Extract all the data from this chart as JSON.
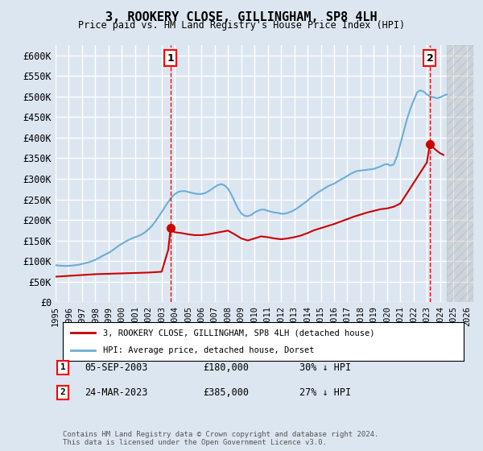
{
  "title": "3, ROOKERY CLOSE, GILLINGHAM, SP8 4LH",
  "subtitle": "Price paid vs. HM Land Registry's House Price Index (HPI)",
  "xlabel": "",
  "ylabel": "",
  "ylim": [
    0,
    625000
  ],
  "yticks": [
    0,
    50000,
    100000,
    150000,
    200000,
    250000,
    300000,
    350000,
    400000,
    450000,
    500000,
    550000,
    600000
  ],
  "ytick_labels": [
    "£0",
    "£50K",
    "£100K",
    "£150K",
    "£200K",
    "£250K",
    "£300K",
    "£350K",
    "£400K",
    "£450K",
    "£500K",
    "£550K",
    "£600K"
  ],
  "xlim_start": 1995.0,
  "xlim_end": 2026.5,
  "xtick_years": [
    1995,
    1996,
    1997,
    1998,
    1999,
    2000,
    2001,
    2002,
    2003,
    2004,
    2005,
    2006,
    2007,
    2008,
    2009,
    2010,
    2011,
    2012,
    2013,
    2014,
    2015,
    2016,
    2017,
    2018,
    2019,
    2020,
    2021,
    2022,
    2023,
    2024,
    2025,
    2026
  ],
  "background_color": "#dce6f1",
  "plot_bg_color": "#dce6f1",
  "hatch_color": "#c0c0c0",
  "grid_color": "#ffffff",
  "hpi_color": "#6baed6",
  "price_color": "#cc0000",
  "marker1_date": 2003.67,
  "marker1_price": 180000,
  "marker1_label": "1",
  "marker2_date": 2023.22,
  "marker2_price": 385000,
  "marker2_label": "2",
  "legend_line1": "3, ROOKERY CLOSE, GILLINGHAM, SP8 4LH (detached house)",
  "legend_line2": "HPI: Average price, detached house, Dorset",
  "footnote_row1": [
    {
      "num": "1",
      "date": "05-SEP-2003",
      "price": "£180,000",
      "pct": "30% ↓ HPI"
    },
    {
      "num": "2",
      "date": "24-MAR-2023",
      "price": "£385,000",
      "pct": "27% ↓ HPI"
    }
  ],
  "copyright": "Contains HM Land Registry data © Crown copyright and database right 2024.\nThis data is licensed under the Open Government Licence v3.0.",
  "hpi_x": [
    1995.0,
    1995.25,
    1995.5,
    1995.75,
    1996.0,
    1996.25,
    1996.5,
    1996.75,
    1997.0,
    1997.25,
    1997.5,
    1997.75,
    1998.0,
    1998.25,
    1998.5,
    1998.75,
    1999.0,
    1999.25,
    1999.5,
    1999.75,
    2000.0,
    2000.25,
    2000.5,
    2000.75,
    2001.0,
    2001.25,
    2001.5,
    2001.75,
    2002.0,
    2002.25,
    2002.5,
    2002.75,
    2003.0,
    2003.25,
    2003.5,
    2003.75,
    2004.0,
    2004.25,
    2004.5,
    2004.75,
    2005.0,
    2005.25,
    2005.5,
    2005.75,
    2006.0,
    2006.25,
    2006.5,
    2006.75,
    2007.0,
    2007.25,
    2007.5,
    2007.75,
    2008.0,
    2008.25,
    2008.5,
    2008.75,
    2009.0,
    2009.25,
    2009.5,
    2009.75,
    2010.0,
    2010.25,
    2010.5,
    2010.75,
    2011.0,
    2011.25,
    2011.5,
    2011.75,
    2012.0,
    2012.25,
    2012.5,
    2012.75,
    2013.0,
    2013.25,
    2013.5,
    2013.75,
    2014.0,
    2014.25,
    2014.5,
    2014.75,
    2015.0,
    2015.25,
    2015.5,
    2015.75,
    2016.0,
    2016.25,
    2016.5,
    2016.75,
    2017.0,
    2017.25,
    2017.5,
    2017.75,
    2018.0,
    2018.25,
    2018.5,
    2018.75,
    2019.0,
    2019.25,
    2019.5,
    2019.75,
    2020.0,
    2020.25,
    2020.5,
    2020.75,
    2021.0,
    2021.25,
    2021.5,
    2021.75,
    2022.0,
    2022.25,
    2022.5,
    2022.75,
    2023.0,
    2023.25,
    2023.5,
    2023.75,
    2024.0,
    2024.25,
    2024.5
  ],
  "hpi_y": [
    90000,
    89000,
    88500,
    88000,
    88500,
    89000,
    90000,
    91000,
    93000,
    95000,
    97000,
    100000,
    103000,
    107000,
    112000,
    116000,
    120000,
    125000,
    131000,
    137000,
    142000,
    147000,
    151000,
    155000,
    158000,
    161000,
    165000,
    170000,
    177000,
    185000,
    195000,
    207000,
    219000,
    232000,
    244000,
    255000,
    263000,
    268000,
    270000,
    270000,
    268000,
    266000,
    264000,
    263000,
    263000,
    265000,
    269000,
    274000,
    280000,
    285000,
    287000,
    284000,
    276000,
    262000,
    245000,
    228000,
    216000,
    210000,
    209000,
    212000,
    218000,
    222000,
    225000,
    225000,
    222000,
    220000,
    218000,
    217000,
    215000,
    215000,
    217000,
    220000,
    224000,
    229000,
    235000,
    241000,
    247000,
    254000,
    260000,
    266000,
    271000,
    276000,
    281000,
    285000,
    288000,
    293000,
    298000,
    302000,
    307000,
    312000,
    316000,
    319000,
    320000,
    321000,
    322000,
    323000,
    324000,
    327000,
    330000,
    334000,
    336000,
    332000,
    335000,
    355000,
    385000,
    415000,
    445000,
    470000,
    490000,
    510000,
    515000,
    512000,
    505000,
    500000,
    498000,
    496000,
    498000,
    502000,
    505000
  ],
  "price_x": [
    1995.0,
    1995.5,
    1996.0,
    1996.5,
    1997.0,
    1997.5,
    1998.0,
    1998.5,
    1999.0,
    1999.5,
    2000.0,
    2000.5,
    2001.0,
    2001.5,
    2002.0,
    2002.5,
    2003.0,
    2003.5,
    2003.67,
    2003.75,
    2004.0,
    2004.5,
    2005.0,
    2005.5,
    2006.0,
    2006.5,
    2007.0,
    2007.5,
    2008.0,
    2008.5,
    2009.0,
    2009.5,
    2010.0,
    2010.5,
    2011.0,
    2011.5,
    2012.0,
    2012.5,
    2013.0,
    2013.5,
    2014.0,
    2014.5,
    2015.0,
    2015.5,
    2016.0,
    2016.5,
    2017.0,
    2017.5,
    2018.0,
    2018.5,
    2019.0,
    2019.5,
    2020.0,
    2020.5,
    2021.0,
    2021.5,
    2022.0,
    2022.5,
    2023.0,
    2023.22,
    2023.5,
    2023.75,
    2024.0,
    2024.25
  ],
  "price_y": [
    62000,
    63000,
    64000,
    65000,
    66000,
    67000,
    68000,
    68500,
    69000,
    69500,
    70000,
    70500,
    71000,
    71500,
    72000,
    73000,
    74000,
    128000,
    180000,
    175000,
    170000,
    168000,
    165000,
    163000,
    163000,
    165000,
    168000,
    171000,
    174000,
    165000,
    155000,
    150000,
    155000,
    160000,
    158000,
    155000,
    153000,
    155000,
    158000,
    162000,
    168000,
    175000,
    180000,
    185000,
    190000,
    196000,
    202000,
    208000,
    213000,
    218000,
    222000,
    226000,
    228000,
    232000,
    240000,
    265000,
    290000,
    315000,
    340000,
    385000,
    375000,
    368000,
    362000,
    358000
  ]
}
